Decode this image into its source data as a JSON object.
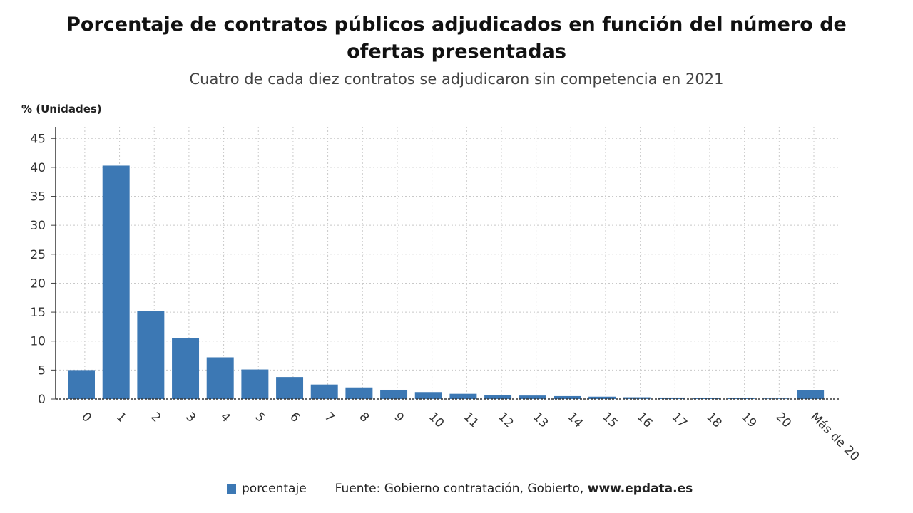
{
  "title": "Porcentaje de contratos públicos adjudicados en función del número de ofertas presentadas",
  "subtitle": "Cuatro de cada diez contratos se adjudicaron sin competencia en 2021",
  "legend": {
    "label": "porcentaje",
    "color": "#3c78b4"
  },
  "source": {
    "text": "Fuente: Gobierno contratación, Gobierto, ",
    "site": "www.epdata.es"
  },
  "chart_data": {
    "type": "bar",
    "ylabel": "% (Unidades)",
    "ylim": [
      0,
      47
    ],
    "yticks": [
      0,
      5,
      10,
      15,
      20,
      25,
      30,
      35,
      40,
      45
    ],
    "grid": true,
    "legend_position": "bottom",
    "categories": [
      "0",
      "1",
      "2",
      "3",
      "4",
      "5",
      "6",
      "7",
      "8",
      "9",
      "10",
      "11",
      "12",
      "13",
      "14",
      "15",
      "16",
      "17",
      "18",
      "19",
      "20",
      "Más de 20"
    ],
    "series": [
      {
        "name": "porcentaje",
        "values": [
          5.0,
          40.3,
          15.2,
          10.5,
          7.2,
          5.1,
          3.8,
          2.5,
          2.0,
          1.6,
          1.2,
          0.9,
          0.7,
          0.6,
          0.5,
          0.4,
          0.3,
          0.25,
          0.2,
          0.15,
          0.1,
          1.5
        ]
      }
    ]
  }
}
